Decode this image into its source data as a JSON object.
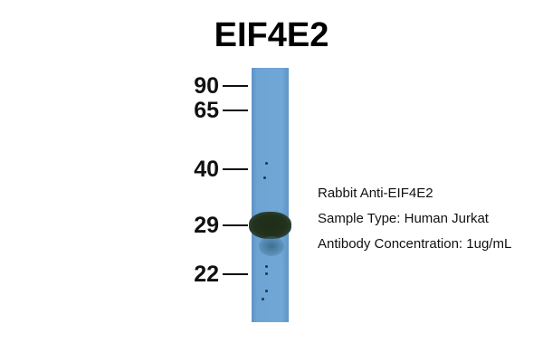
{
  "title": "EIF4E2",
  "markers": [
    "90",
    "65",
    "40",
    "29",
    "22"
  ],
  "info": {
    "antibody": "Rabbit Anti-EIF4E2",
    "sample_type": "Sample Type: Human Jurkat",
    "concentration": "Antibody Concentration: 1ug/mL"
  },
  "colors": {
    "membrane": "#6da4d4",
    "band": "#22321c"
  }
}
